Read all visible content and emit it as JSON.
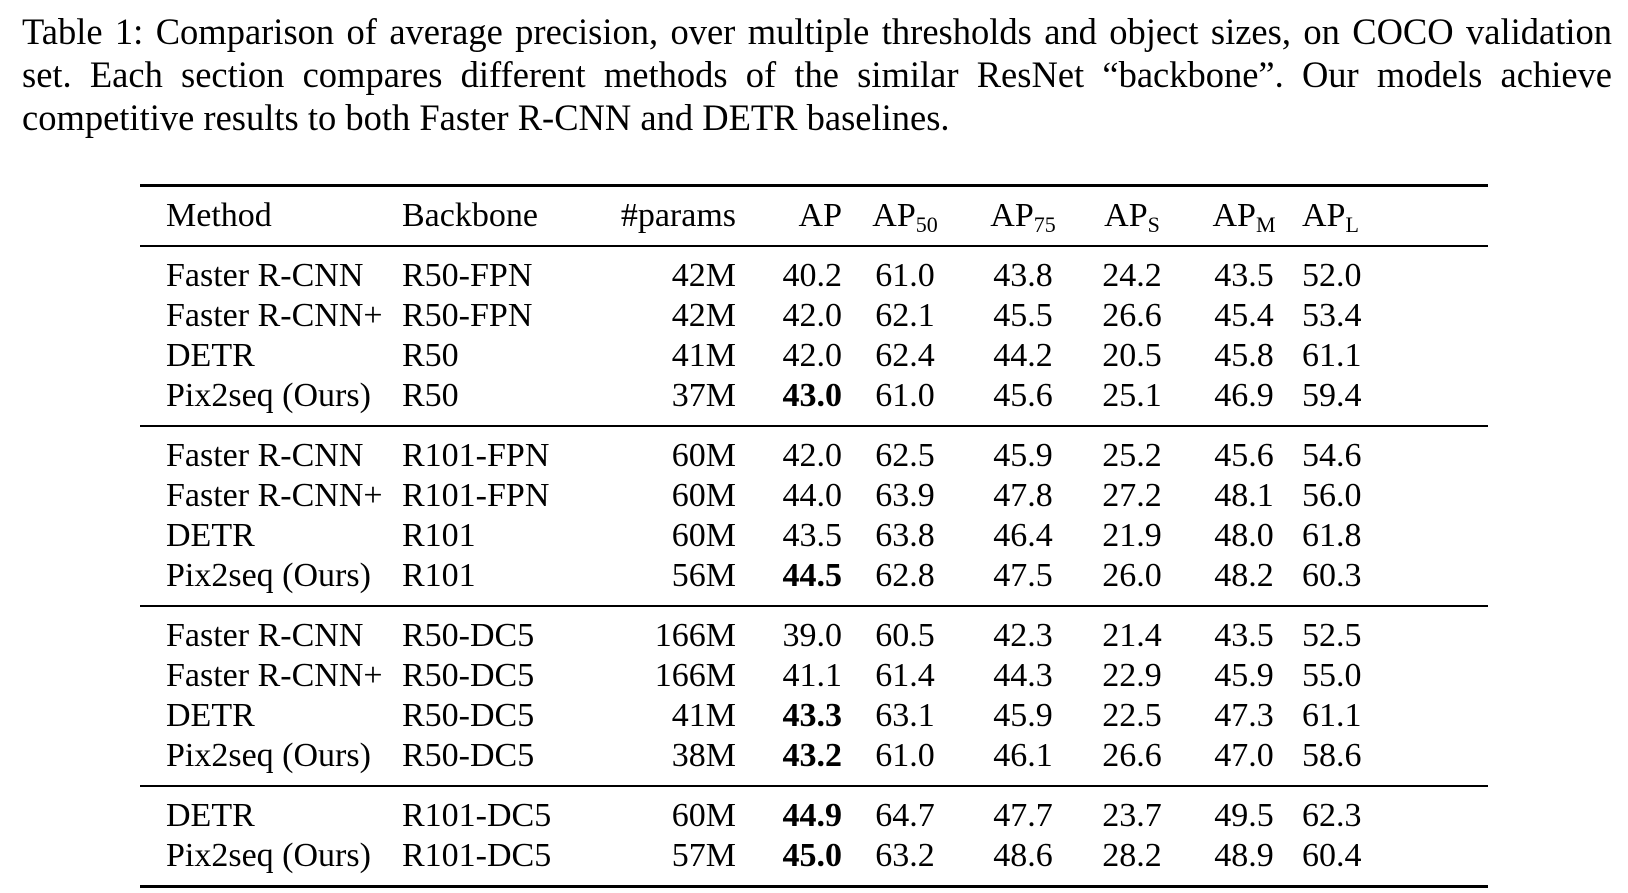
{
  "caption": "Table 1: Comparison of average precision, over multiple thresholds and object sizes, on COCO validation set. Each section compares different methods of the similar ResNet “backbone”. Our models achieve competitive results to both Faster R-CNN and DETR baselines.",
  "table": {
    "headers": {
      "method": "Method",
      "backbone": "Backbone",
      "params": "#params",
      "ap": "AP",
      "ap50_base": "AP",
      "ap50_sub": "50",
      "ap75_base": "AP",
      "ap75_sub": "75",
      "aps_base": "AP",
      "aps_sub": "S",
      "apm_base": "AP",
      "apm_sub": "M",
      "apl_base": "AP",
      "apl_sub": "L"
    },
    "sections": [
      {
        "rows": [
          {
            "method": "Faster R-CNN",
            "backbone": "R50-FPN",
            "params": "42M",
            "ap": "40.2",
            "ap_bold": false,
            "ap50": "61.0",
            "ap75": "43.8",
            "aps": "24.2",
            "apm": "43.5",
            "apl": "52.0"
          },
          {
            "method": "Faster R-CNN+",
            "backbone": "R50-FPN",
            "params": "42M",
            "ap": "42.0",
            "ap_bold": false,
            "ap50": "62.1",
            "ap75": "45.5",
            "aps": "26.6",
            "apm": "45.4",
            "apl": "53.4"
          },
          {
            "method": "DETR",
            "backbone": "R50",
            "params": "41M",
            "ap": "42.0",
            "ap_bold": false,
            "ap50": "62.4",
            "ap75": "44.2",
            "aps": "20.5",
            "apm": "45.8",
            "apl": "61.1"
          },
          {
            "method": "Pix2seq (Ours)",
            "backbone": "R50",
            "params": "37M",
            "ap": "43.0",
            "ap_bold": true,
            "ap50": "61.0",
            "ap75": "45.6",
            "aps": "25.1",
            "apm": "46.9",
            "apl": "59.4"
          }
        ]
      },
      {
        "rows": [
          {
            "method": "Faster R-CNN",
            "backbone": "R101-FPN",
            "params": "60M",
            "ap": "42.0",
            "ap_bold": false,
            "ap50": "62.5",
            "ap75": "45.9",
            "aps": "25.2",
            "apm": "45.6",
            "apl": "54.6"
          },
          {
            "method": "Faster R-CNN+",
            "backbone": "R101-FPN",
            "params": "60M",
            "ap": "44.0",
            "ap_bold": false,
            "ap50": "63.9",
            "ap75": "47.8",
            "aps": "27.2",
            "apm": "48.1",
            "apl": "56.0"
          },
          {
            "method": "DETR",
            "backbone": "R101",
            "params": "60M",
            "ap": "43.5",
            "ap_bold": false,
            "ap50": "63.8",
            "ap75": "46.4",
            "aps": "21.9",
            "apm": "48.0",
            "apl": "61.8"
          },
          {
            "method": "Pix2seq (Ours)",
            "backbone": "R101",
            "params": "56M",
            "ap": "44.5",
            "ap_bold": true,
            "ap50": "62.8",
            "ap75": "47.5",
            "aps": "26.0",
            "apm": "48.2",
            "apl": "60.3"
          }
        ]
      },
      {
        "rows": [
          {
            "method": "Faster R-CNN",
            "backbone": "R50-DC5",
            "params": "166M",
            "ap": "39.0",
            "ap_bold": false,
            "ap50": "60.5",
            "ap75": "42.3",
            "aps": "21.4",
            "apm": "43.5",
            "apl": "52.5"
          },
          {
            "method": "Faster R-CNN+",
            "backbone": "R50-DC5",
            "params": "166M",
            "ap": "41.1",
            "ap_bold": false,
            "ap50": "61.4",
            "ap75": "44.3",
            "aps": "22.9",
            "apm": "45.9",
            "apl": "55.0"
          },
          {
            "method": "DETR",
            "backbone": "R50-DC5",
            "params": "41M",
            "ap": "43.3",
            "ap_bold": true,
            "ap50": "63.1",
            "ap75": "45.9",
            "aps": "22.5",
            "apm": "47.3",
            "apl": "61.1"
          },
          {
            "method": "Pix2seq (Ours)",
            "backbone": "R50-DC5",
            "params": "38M",
            "ap": "43.2",
            "ap_bold": true,
            "ap50": "61.0",
            "ap75": "46.1",
            "aps": "26.6",
            "apm": "47.0",
            "apl": "58.6"
          }
        ]
      },
      {
        "rows": [
          {
            "method": "DETR",
            "backbone": "R101-DC5",
            "params": "60M",
            "ap": "44.9",
            "ap_bold": true,
            "ap50": "64.7",
            "ap75": "47.7",
            "aps": "23.7",
            "apm": "49.5",
            "apl": "62.3"
          },
          {
            "method": "Pix2seq (Ours)",
            "backbone": "R101-DC5",
            "params": "57M",
            "ap": "45.0",
            "ap_bold": true,
            "ap50": "63.2",
            "ap75": "48.6",
            "aps": "28.2",
            "apm": "48.9",
            "apl": "60.4"
          }
        ]
      }
    ]
  }
}
